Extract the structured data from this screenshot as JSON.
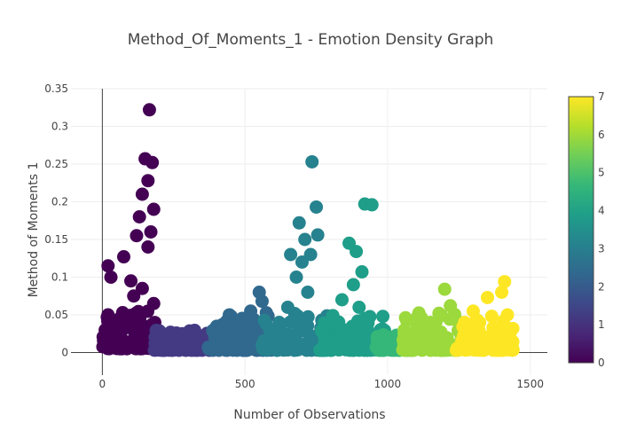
{
  "chart_data": {
    "type": "scatter",
    "title": "Method_Of_Moments_1 - Emotion Density Graph",
    "xlabel": "Number of Observations",
    "ylabel": "Method of Moments 1",
    "xlim": [
      -110,
      1560
    ],
    "ylim": [
      -0.03,
      0.35
    ],
    "x_ticks": [
      0,
      500,
      1000,
      1500
    ],
    "y_ticks": [
      0,
      0.05,
      0.1,
      0.15,
      0.2,
      0.25,
      0.3,
      0.35
    ],
    "y_tick_labels": [
      "0",
      "0.05",
      "0.1",
      "0.15",
      "0.2",
      "0.25",
      "0.3",
      "0.35"
    ],
    "grid": true,
    "colorbar": {
      "min": 0,
      "max": 7,
      "ticks": [
        0,
        1,
        2,
        3,
        4,
        5,
        6,
        7
      ],
      "colorscale": "viridis",
      "placement": "right"
    },
    "clusters": [
      {
        "emotion": 0,
        "color": "#440154",
        "x_range": [
          0,
          200
        ],
        "y_range": [
          0.005,
          0.32
        ],
        "points": [
          [
            165,
            0.322
          ],
          [
            150,
            0.257
          ],
          [
            175,
            0.252
          ],
          [
            160,
            0.228
          ],
          [
            140,
            0.21
          ],
          [
            180,
            0.19
          ],
          [
            130,
            0.18
          ],
          [
            170,
            0.16
          ],
          [
            120,
            0.155
          ],
          [
            160,
            0.14
          ],
          [
            20,
            0.115
          ],
          [
            30,
            0.1
          ],
          [
            75,
            0.127
          ],
          [
            100,
            0.095
          ],
          [
            140,
            0.085
          ],
          [
            110,
            0.075
          ],
          [
            180,
            0.065
          ],
          [
            20,
            0.05
          ],
          [
            60,
            0.045
          ],
          [
            10,
            0.03
          ],
          [
            40,
            0.02
          ],
          [
            80,
            0.01
          ]
        ]
      },
      {
        "emotion": 1,
        "color": "#443a83",
        "x_range": [
          180,
          380
        ],
        "y_range": [
          0.003,
          0.03
        ],
        "points": [
          [
            200,
            0.02
          ],
          [
            240,
            0.015
          ],
          [
            280,
            0.025
          ],
          [
            320,
            0.01
          ],
          [
            360,
            0.02
          ],
          [
            220,
            0.008
          ],
          [
            300,
            0.005
          ]
        ]
      },
      {
        "emotion": 2,
        "color": "#31688e",
        "x_range": [
          370,
          600
        ],
        "y_range": [
          0.003,
          0.082
        ],
        "points": [
          [
            550,
            0.08
          ],
          [
            560,
            0.068
          ],
          [
            520,
            0.055
          ],
          [
            480,
            0.04
          ],
          [
            420,
            0.03
          ],
          [
            400,
            0.02
          ],
          [
            460,
            0.01
          ],
          [
            580,
            0.015
          ],
          [
            500,
            0.025
          ]
        ]
      },
      {
        "emotion": 3,
        "color": "#26828e",
        "x_range": [
          560,
          790
        ],
        "y_range": [
          0.003,
          0.255
        ],
        "points": [
          [
            735,
            0.253
          ],
          [
            750,
            0.193
          ],
          [
            690,
            0.172
          ],
          [
            710,
            0.15
          ],
          [
            755,
            0.156
          ],
          [
            660,
            0.13
          ],
          [
            730,
            0.13
          ],
          [
            700,
            0.12
          ],
          [
            680,
            0.1
          ],
          [
            720,
            0.08
          ],
          [
            650,
            0.06
          ],
          [
            620,
            0.04
          ],
          [
            600,
            0.02
          ],
          [
            700,
            0.03
          ],
          [
            760,
            0.02
          ],
          [
            640,
            0.01
          ]
        ]
      },
      {
        "emotion": 4,
        "color": "#1f9e89",
        "x_range": [
          760,
          990
        ],
        "y_range": [
          0.003,
          0.197
        ],
        "points": [
          [
            920,
            0.197
          ],
          [
            945,
            0.196
          ],
          [
            865,
            0.145
          ],
          [
            890,
            0.134
          ],
          [
            910,
            0.107
          ],
          [
            880,
            0.09
          ],
          [
            840,
            0.07
          ],
          [
            900,
            0.06
          ],
          [
            800,
            0.04
          ],
          [
            780,
            0.02
          ],
          [
            850,
            0.03
          ],
          [
            950,
            0.02
          ],
          [
            820,
            0.01
          ]
        ]
      },
      {
        "emotion": 5,
        "color": "#35b779",
        "x_range": [
          960,
          1080
        ],
        "y_range": [
          0.003,
          0.025
        ],
        "points": [
          [
            980,
            0.02
          ],
          [
            1010,
            0.012
          ],
          [
            1040,
            0.018
          ],
          [
            1070,
            0.008
          ]
        ]
      },
      {
        "emotion": 6,
        "color": "#9bd93c",
        "x_range": [
          1050,
          1270
        ],
        "y_range": [
          0.003,
          0.085
        ],
        "points": [
          [
            1200,
            0.084
          ],
          [
            1220,
            0.062
          ],
          [
            1180,
            0.052
          ],
          [
            1150,
            0.04
          ],
          [
            1120,
            0.025
          ],
          [
            1090,
            0.015
          ],
          [
            1250,
            0.03
          ],
          [
            1230,
            0.01
          ]
        ]
      },
      {
        "emotion": 7,
        "color": "#fde725",
        "x_range": [
          1240,
          1440
        ],
        "y_range": [
          0.003,
          0.095
        ],
        "points": [
          [
            1410,
            0.094
          ],
          [
            1400,
            0.08
          ],
          [
            1350,
            0.073
          ],
          [
            1300,
            0.055
          ],
          [
            1270,
            0.04
          ],
          [
            1320,
            0.03
          ],
          [
            1380,
            0.02
          ],
          [
            1420,
            0.05
          ],
          [
            1260,
            0.015
          ],
          [
            1360,
            0.01
          ]
        ]
      }
    ]
  }
}
